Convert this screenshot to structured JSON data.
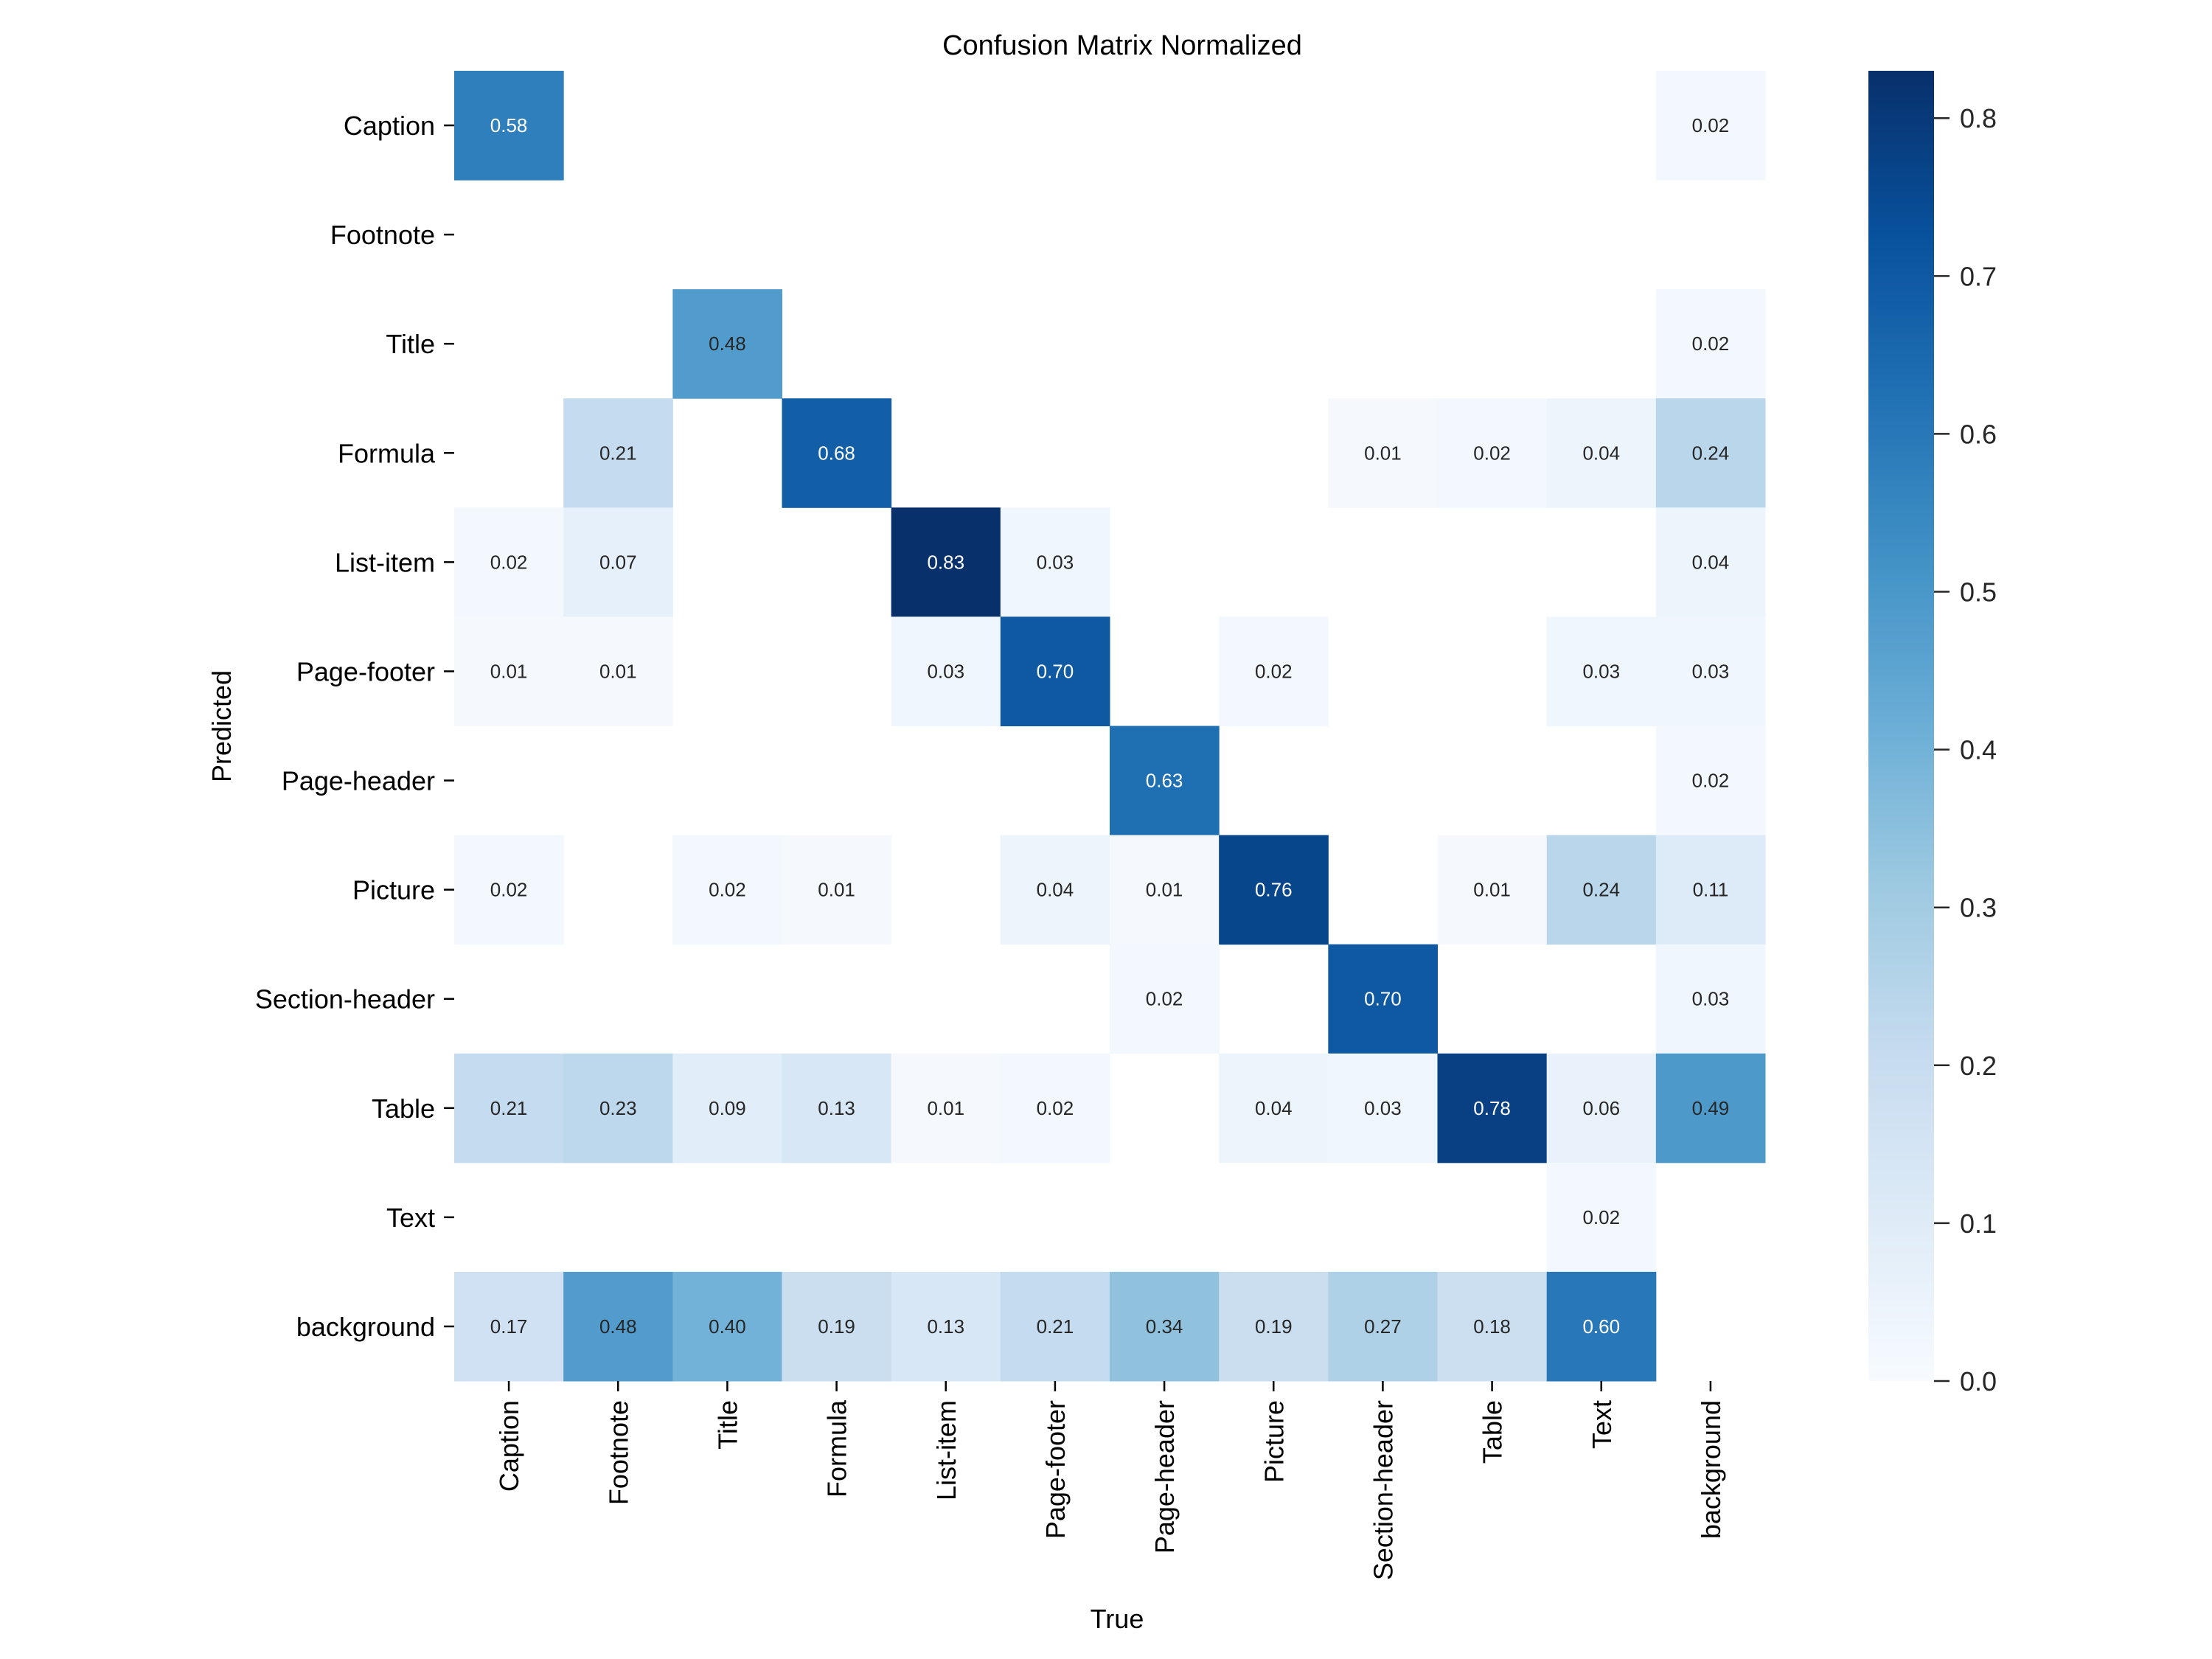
{
  "chart_data": {
    "type": "heatmap",
    "title": "Confusion Matrix Normalized",
    "xlabel": "True",
    "ylabel": "Predicted",
    "x_categories": [
      "Caption",
      "Footnote",
      "Title",
      "Formula",
      "List-item",
      "Page-footer",
      "Page-header",
      "Picture",
      "Section-header",
      "Table",
      "Text",
      "background"
    ],
    "y_categories": [
      "Caption",
      "Footnote",
      "Title",
      "Formula",
      "List-item",
      "Page-footer",
      "Page-header",
      "Picture",
      "Section-header",
      "Table",
      "Text",
      "background"
    ],
    "values": [
      [
        0.58,
        null,
        null,
        null,
        null,
        null,
        null,
        null,
        null,
        null,
        null,
        0.02
      ],
      [
        null,
        null,
        null,
        null,
        null,
        null,
        null,
        null,
        null,
        null,
        null,
        null
      ],
      [
        null,
        null,
        0.48,
        null,
        null,
        null,
        null,
        null,
        null,
        null,
        null,
        0.02
      ],
      [
        null,
        0.21,
        null,
        0.68,
        null,
        null,
        null,
        null,
        0.01,
        0.02,
        0.04,
        0.24
      ],
      [
        0.02,
        0.07,
        null,
        null,
        0.83,
        0.03,
        null,
        null,
        null,
        null,
        null,
        0.04
      ],
      [
        0.01,
        0.01,
        null,
        null,
        0.03,
        0.7,
        null,
        0.02,
        null,
        null,
        0.03,
        0.03
      ],
      [
        null,
        null,
        null,
        null,
        null,
        null,
        0.63,
        null,
        null,
        null,
        null,
        0.02
      ],
      [
        0.02,
        null,
        0.02,
        0.01,
        null,
        0.04,
        0.01,
        0.76,
        null,
        0.01,
        0.24,
        0.11
      ],
      [
        null,
        null,
        null,
        null,
        null,
        null,
        0.02,
        null,
        0.7,
        null,
        null,
        0.03
      ],
      [
        0.21,
        0.23,
        0.09,
        0.13,
        0.01,
        0.02,
        null,
        0.04,
        0.03,
        0.78,
        0.06,
        0.49
      ],
      [
        null,
        null,
        null,
        null,
        null,
        null,
        null,
        null,
        null,
        null,
        0.02,
        null
      ],
      [
        0.17,
        0.48,
        0.4,
        0.19,
        0.13,
        0.21,
        0.34,
        0.19,
        0.27,
        0.18,
        0.6,
        null
      ]
    ],
    "value_format": "0.00",
    "colormap": "Blues",
    "colormap_stops": [
      "#f7fbff",
      "#deebf7",
      "#c6dbef",
      "#9ecae1",
      "#6baed6",
      "#4292c6",
      "#2171b5",
      "#08519c",
      "#08306b"
    ],
    "vmin": 0.0,
    "vmax": 0.83,
    "colorbar": {
      "ticks": [
        0.0,
        0.1,
        0.2,
        0.3,
        0.4,
        0.5,
        0.6,
        0.7,
        0.8
      ],
      "tick_labels": [
        "0.0",
        "0.1",
        "0.2",
        "0.3",
        "0.4",
        "0.5",
        "0.6",
        "0.7",
        "0.8"
      ],
      "placement": "right"
    },
    "grid": false
  }
}
